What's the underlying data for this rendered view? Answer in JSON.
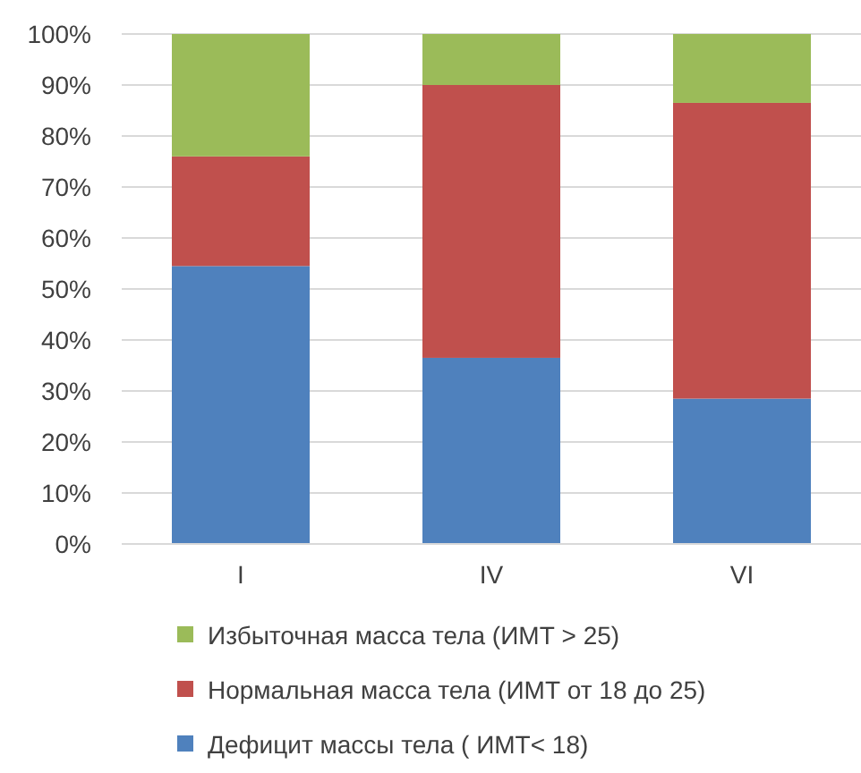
{
  "chart_data": {
    "type": "bar",
    "stacked": true,
    "categories": [
      "I",
      "IV",
      "VI"
    ],
    "series": [
      {
        "name": "Дефицит массы тела ( ИМТ< 18)",
        "color": "#4f81bd",
        "values": [
          54.5,
          36.5,
          28.5
        ]
      },
      {
        "name": "Нормальная масса тела (ИМТ от 18 до 25)",
        "color": "#c0504d",
        "values": [
          21.5,
          53.5,
          58
        ]
      },
      {
        "name": "Избыточная масса тела (ИМТ > 25)",
        "color": "#9bbb59",
        "values": [
          24,
          10,
          13.5
        ]
      }
    ],
    "ylim": [
      0,
      100
    ],
    "yticks": [
      {
        "value": 0,
        "label": "0%"
      },
      {
        "value": 10,
        "label": "10%"
      },
      {
        "value": 20,
        "label": "20%"
      },
      {
        "value": 30,
        "label": "30%"
      },
      {
        "value": 40,
        "label": "40%"
      },
      {
        "value": 50,
        "label": "50%"
      },
      {
        "value": 60,
        "label": "60%"
      },
      {
        "value": 70,
        "label": "70%"
      },
      {
        "value": 80,
        "label": "80%"
      },
      {
        "value": 90,
        "label": "90%"
      },
      {
        "value": 100,
        "label": "100%"
      }
    ],
    "grid": "y",
    "legend": "bottom"
  }
}
